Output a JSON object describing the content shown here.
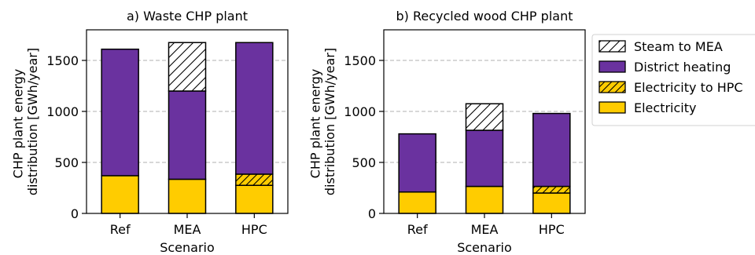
{
  "colors": {
    "electricity": "#FFCC00",
    "district_heating": "#6A329F",
    "electricity_to_hpc": "#FFCC00",
    "steam_to_mea": "#FFFFFF",
    "grid": "#B0B0B0",
    "edge": "#000000"
  },
  "legend": {
    "placement": "right",
    "entries": [
      {
        "key": "steam_to_mea",
        "label": "Steam to MEA",
        "hatch": true
      },
      {
        "key": "district_heating",
        "label": "District heating",
        "hatch": false
      },
      {
        "key": "electricity_to_hpc",
        "label": "Electricity to HPC",
        "hatch": true
      },
      {
        "key": "electricity",
        "label": "Electricity",
        "hatch": false
      }
    ]
  },
  "chart_data": [
    {
      "type": "bar",
      "stacked": true,
      "title": "a) Waste CHP plant",
      "xlabel": "Scenario",
      "ylabel": "CHP plant energy\ndistribution [GWh/year]",
      "ylim": [
        0,
        1800
      ],
      "yticks": [
        0,
        500,
        1000,
        1500
      ],
      "grid": "y-dashed",
      "categories": [
        "Ref",
        "MEA",
        "HPC"
      ],
      "series": [
        {
          "name": "Electricity",
          "key": "electricity",
          "values": [
            370,
            335,
            275
          ]
        },
        {
          "name": "Electricity to HPC",
          "key": "electricity_to_hpc",
          "values": [
            0,
            0,
            110
          ]
        },
        {
          "name": "District heating",
          "key": "district_heating",
          "values": [
            1240,
            865,
            1290
          ]
        },
        {
          "name": "Steam to MEA",
          "key": "steam_to_mea",
          "values": [
            0,
            475,
            0
          ]
        }
      ]
    },
    {
      "type": "bar",
      "stacked": true,
      "title": "b) Recycled wood CHP plant",
      "xlabel": "Scenario",
      "ylabel": "CHP plant energy\ndistribution [GWh/year]",
      "ylim": [
        0,
        1800
      ],
      "yticks": [
        0,
        500,
        1000,
        1500
      ],
      "grid": "y-dashed",
      "categories": [
        "Ref",
        "MEA",
        "HPC"
      ],
      "series": [
        {
          "name": "Electricity",
          "key": "electricity",
          "values": [
            210,
            265,
            200
          ]
        },
        {
          "name": "Electricity to HPC",
          "key": "electricity_to_hpc",
          "values": [
            0,
            0,
            65
          ]
        },
        {
          "name": "District heating",
          "key": "district_heating",
          "values": [
            570,
            550,
            715
          ]
        },
        {
          "name": "Steam to MEA",
          "key": "steam_to_mea",
          "values": [
            0,
            260,
            0
          ]
        }
      ]
    }
  ]
}
